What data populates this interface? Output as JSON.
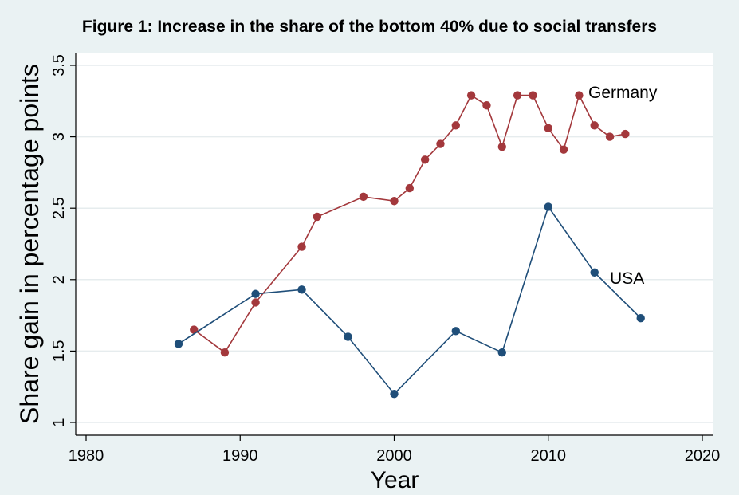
{
  "figure": {
    "title": "Figure 1: Increase in the share of the bottom 40% due to social transfers"
  },
  "chart_data": {
    "type": "line",
    "title": "Figure 1: Increase in the share of the bottom 40% due to social transfers",
    "xlabel": "Year",
    "ylabel": "Share gain in percentage points",
    "xlim": [
      1980,
      2020
    ],
    "ylim": [
      1,
      3.5
    ],
    "xticks": [
      1980,
      1990,
      2000,
      2010,
      2020
    ],
    "yticks": [
      1,
      1.5,
      2,
      2.5,
      3,
      3.5
    ],
    "xtick_labels": [
      "1980",
      "1990",
      "2000",
      "2010",
      "2020"
    ],
    "ytick_labels": [
      "1",
      "1.5",
      "2",
      "2.5",
      "3",
      "3.5"
    ],
    "grid": true,
    "legend": "inline labels",
    "series": [
      {
        "name": "Germany",
        "color": "#a3383c",
        "x": [
          1987,
          1989,
          1991,
          1994,
          1995,
          1998,
          2000,
          2001,
          2002,
          2003,
          2004,
          2005,
          2006,
          2007,
          2008,
          2009,
          2010,
          2011,
          2012,
          2013,
          2014,
          2015
        ],
        "y": [
          1.65,
          1.49,
          1.84,
          2.23,
          2.44,
          2.58,
          2.55,
          2.64,
          2.84,
          2.95,
          3.08,
          3.29,
          3.22,
          2.93,
          3.29,
          3.29,
          3.06,
          2.91,
          3.29,
          3.08,
          3.0,
          3.02
        ]
      },
      {
        "name": "USA",
        "color": "#1f4e79",
        "x": [
          1986,
          1991,
          1994,
          1997,
          2000,
          2004,
          2007,
          2010,
          2013,
          2016
        ],
        "y": [
          1.55,
          1.9,
          1.93,
          1.6,
          1.2,
          1.64,
          1.49,
          2.51,
          2.05,
          1.73
        ]
      }
    ]
  }
}
